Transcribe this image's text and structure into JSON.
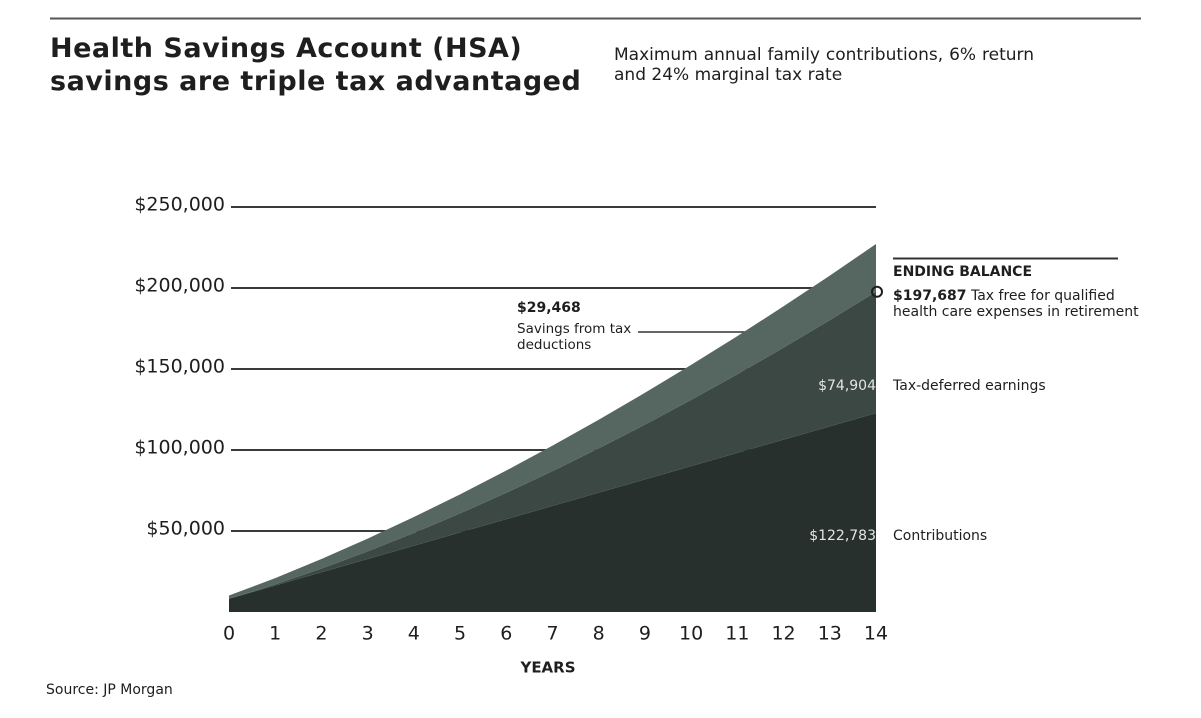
{
  "chart_data": {
    "type": "stacked_area",
    "title": "Health Savings Account (HSA) savings are triple tax advantaged",
    "subtitle": "Maximum annual family contributions, 6% return and 24% marginal tax rate",
    "x_label": "YEARS",
    "source": "Source: JP Morgan",
    "x": [
      0,
      1,
      2,
      3,
      4,
      5,
      6,
      7,
      8,
      9,
      10,
      11,
      12,
      13,
      14
    ],
    "xlim": [
      0,
      14
    ],
    "xticks": [
      0,
      1,
      2,
      3,
      4,
      5,
      6,
      7,
      8,
      9,
      10,
      11,
      12,
      13,
      14
    ],
    "ylim": [
      0,
      250000
    ],
    "yticks": [
      {
        "value": 50000,
        "label": "$50,000"
      },
      {
        "value": 100000,
        "label": "$100,000"
      },
      {
        "value": 150000,
        "label": "$150,000"
      },
      {
        "value": 200000,
        "label": "$200,000"
      },
      {
        "value": 250000,
        "label": "$250,000"
      }
    ],
    "grid": true,
    "series": [
      {
        "name": "Contributions",
        "color": "#27302c",
        "values": [
          8186,
          16371,
          24557,
          32742,
          40928,
          49113,
          57299,
          65484,
          73670,
          81855,
          90041,
          98226,
          106412,
          114597,
          122783
        ],
        "value_labels": [
          null,
          null,
          null,
          null,
          null,
          null,
          null,
          null,
          null,
          null,
          null,
          null,
          null,
          null,
          "$122,783"
        ]
      },
      {
        "name": "Tax-deferred earnings",
        "color": "#3b4843",
        "values": [
          0,
          648,
          2256,
          4683,
          7859,
          11739,
          16302,
          21513,
          27354,
          33818,
          40876,
          48524,
          56752,
          65550,
          74904
        ],
        "value_labels": [
          null,
          null,
          null,
          null,
          null,
          null,
          null,
          null,
          null,
          null,
          null,
          null,
          null,
          null,
          "$74,904"
        ]
      },
      {
        "name": "Savings from tax deductions",
        "color": "#566762",
        "values": [
          1965,
          3929,
          5894,
          7858,
          9823,
          11787,
          13752,
          15716,
          17681,
          19645,
          21610,
          23574,
          25539,
          27503,
          29468
        ],
        "value_labels": [
          null,
          null,
          null,
          null,
          null,
          null,
          null,
          null,
          null,
          null,
          null,
          null,
          null,
          null,
          "$29,468"
        ]
      }
    ],
    "ending_balance": {
      "label": "ENDING BALANCE",
      "value": 197687,
      "value_label": "$197,687",
      "text": "Tax free for qualified health care expenses in retirement"
    }
  }
}
